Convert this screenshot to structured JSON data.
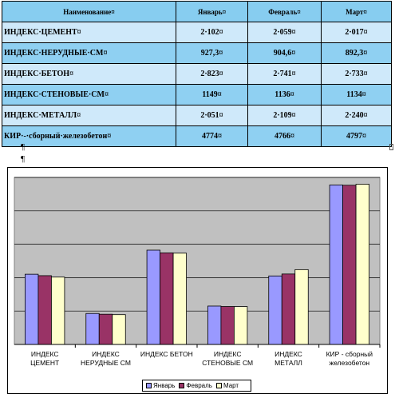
{
  "table": {
    "headers": [
      "Наименование¤",
      "Январь¤",
      "Февраль¤",
      "Март¤"
    ],
    "rows": [
      {
        "name": "ИНДЕКС·ЦЕМЕНТ¤",
        "jan": "2·102¤",
        "feb": "2·059¤",
        "mar": "2·017¤"
      },
      {
        "name": "ИНДЕКС·НЕРУДНЫЕ·СМ¤",
        "jan": "927,3¤",
        "feb": "904,6¤",
        "mar": "892,3¤"
      },
      {
        "name": "ИНДЕКС·БЕТОН¤",
        "jan": "2·823¤",
        "feb": "2·741¤",
        "mar": "2·733¤"
      },
      {
        "name": "ИНДЕКС·СТЕНОВЫЕ·СМ¤",
        "jan": "1149¤",
        "feb": "1136¤",
        "mar": "1134¤"
      },
      {
        "name": "ИНДЕКС·МЕТАЛЛ¤",
        "jan": "2·051¤",
        "feb": "2·109¤",
        "mar": "2·240¤"
      },
      {
        "name": "КИР·-·сборный·железобетон¤",
        "jan": "4774¤",
        "feb": "4766¤",
        "mar": "4797¤"
      }
    ],
    "pilcrow": "¶"
  },
  "colors": {
    "header_bg": "#87cdf0",
    "row_light": "#cfe9fa",
    "row_dark": "#8fd0f2",
    "plot_bg": "#c0c0c0",
    "jan": "#9999ff",
    "feb": "#993366",
    "mar": "#ffffcc"
  },
  "chart_data": {
    "type": "bar",
    "categories": [
      [
        "ИНДЕКС",
        "ЦЕМЕНТ"
      ],
      [
        "ИНДЕКС",
        "НЕРУДНЫЕ СМ"
      ],
      [
        "ИНДЕКС БЕТОН"
      ],
      [
        "ИНДЕКС",
        "СТЕНОВЫЕ СМ"
      ],
      [
        "ИНДЕКС",
        "МЕТАЛЛ"
      ],
      [
        "КИР - сборный",
        "железобетон"
      ]
    ],
    "series": [
      {
        "name": "Январь",
        "values": [
          2102,
          927.3,
          2823,
          1149,
          2051,
          4774
        ]
      },
      {
        "name": "Февраль",
        "values": [
          2059,
          904.6,
          2741,
          1136,
          2109,
          4766
        ]
      },
      {
        "name": "Март",
        "values": [
          2017,
          892.3,
          2733,
          1134,
          2240,
          4797
        ]
      }
    ],
    "ylim": [
      0,
      5000
    ],
    "grid": true,
    "legend": "bottom",
    "title": "",
    "xlabel": "",
    "ylabel": ""
  }
}
